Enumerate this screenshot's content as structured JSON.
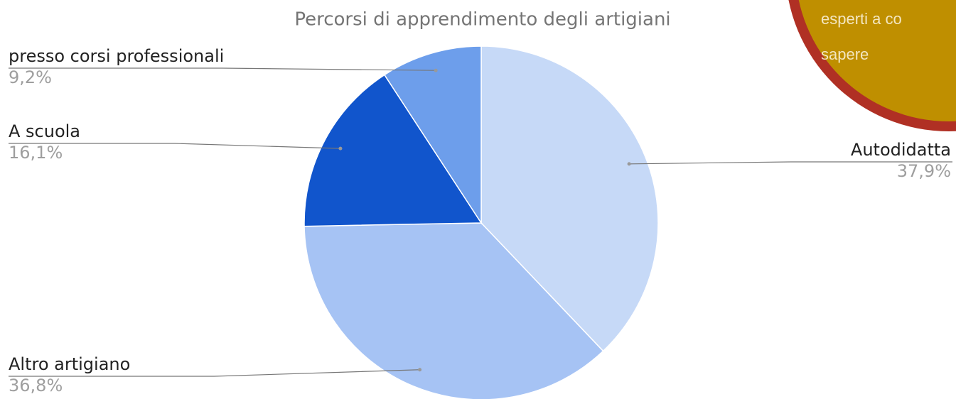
{
  "chart_data": {
    "type": "pie",
    "title": "Percorsi di apprendimento degli artigiani",
    "categories": [
      "Autodidatta",
      "Altro artigiano",
      "A scuola",
      "presso corsi professionali"
    ],
    "values": [
      37.9,
      36.8,
      16.1,
      9.2
    ],
    "value_labels": [
      "37,9%",
      "36,8%",
      "16,1%",
      "9,2%"
    ],
    "colors": [
      "#c6d9f7",
      "#a6c3f4",
      "#1155cc",
      "#6d9eeb"
    ]
  },
  "overlay": {
    "lines": [
      "esperti a co",
      "sapere"
    ]
  }
}
